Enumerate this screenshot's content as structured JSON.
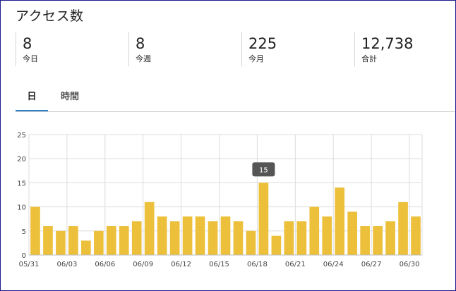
{
  "page": {
    "title": "アクセス数"
  },
  "stats": [
    {
      "value": "8",
      "label": "今日"
    },
    {
      "value": "8",
      "label": "今週"
    },
    {
      "value": "225",
      "label": "今月"
    },
    {
      "value": "12,738",
      "label": "合計"
    }
  ],
  "tabs": [
    {
      "label": "日",
      "active": true
    },
    {
      "label": "時間",
      "active": false
    }
  ],
  "colors": {
    "bar": "#ecc03a",
    "tab_accent": "#2a7fc9",
    "tooltip": "#555555",
    "frame": "#1a1a8c"
  },
  "tooltip": {
    "text": "15"
  },
  "chart_data": {
    "type": "bar",
    "title": "",
    "xlabel": "",
    "ylabel": "",
    "ylim": [
      0,
      25
    ],
    "yticks": [
      0,
      5,
      10,
      15,
      20,
      25
    ],
    "grid": true,
    "categories": [
      "05/31",
      "06/01",
      "06/02",
      "06/03",
      "06/04",
      "06/05",
      "06/06",
      "06/07",
      "06/08",
      "06/09",
      "06/10",
      "06/11",
      "06/12",
      "06/13",
      "06/14",
      "06/15",
      "06/16",
      "06/17",
      "06/18",
      "06/19",
      "06/20",
      "06/21",
      "06/22",
      "06/23",
      "06/24",
      "06/25",
      "06/26",
      "06/27",
      "06/28",
      "06/29",
      "06/30"
    ],
    "values": [
      10,
      6,
      5,
      6,
      3,
      5,
      6,
      6,
      7,
      11,
      8,
      7,
      8,
      8,
      7,
      8,
      7,
      5,
      15,
      4,
      7,
      7,
      10,
      8,
      14,
      9,
      6,
      6,
      7,
      11,
      8
    ],
    "xtick_labels": [
      "05/31",
      "06/03",
      "06/06",
      "06/09",
      "06/12",
      "06/15",
      "06/18",
      "06/21",
      "06/24",
      "06/27",
      "06/30"
    ],
    "highlight_category": "06/18"
  }
}
